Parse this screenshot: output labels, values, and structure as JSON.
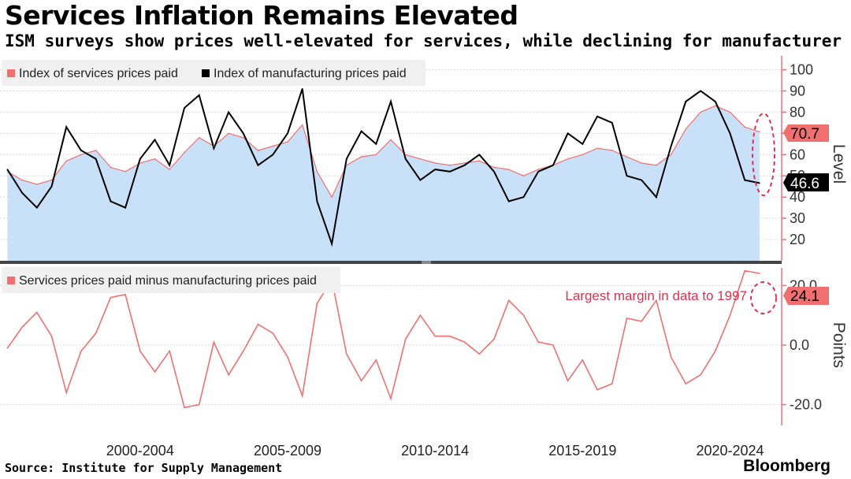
{
  "title": "Services Inflation Remains Elevated",
  "subtitle": "ISM surveys show prices well-elevated for services, while declining for manufacturer",
  "source": "Source: Institute for Supply Management",
  "brand": "Bloomberg",
  "colors": {
    "services": "#f07070",
    "manufacturing": "#000000",
    "area_fill": "#c9e1f8",
    "axis": "#e8707a",
    "annotation": "#e03050"
  },
  "chart_data": [
    {
      "type": "line",
      "ylabel": "Level",
      "ylim": [
        10,
        105
      ],
      "yticks": [
        "20",
        "30",
        "40",
        "50",
        "60",
        "70",
        "80",
        "90",
        "100"
      ],
      "xlabels": [
        "2000-2004",
        "2005-2009",
        "2010-2014",
        "2015-2019",
        "2020-2024"
      ],
      "grid": true,
      "legend_position": "top-left",
      "last_value_labels": [
        {
          "series": "Index of services prices paid",
          "value": "70.7"
        },
        {
          "series": "Index of manufacturing prices paid",
          "value": "46.6"
        }
      ],
      "series": [
        {
          "name": "Index of services prices paid",
          "style": "area",
          "x": [
            1998.0,
            1998.5,
            1999.0,
            1999.5,
            2000.0,
            2000.5,
            2001.0,
            2001.5,
            2002.0,
            2002.5,
            2003.0,
            2003.5,
            2004.0,
            2004.5,
            2005.0,
            2005.5,
            2006.0,
            2006.5,
            2007.0,
            2007.5,
            2008.0,
            2008.5,
            2009.0,
            2009.5,
            2010.0,
            2010.5,
            2011.0,
            2011.5,
            2012.0,
            2012.5,
            2013.0,
            2013.5,
            2014.0,
            2014.5,
            2015.0,
            2015.5,
            2016.0,
            2016.5,
            2017.0,
            2017.5,
            2018.0,
            2018.5,
            2019.0,
            2019.5,
            2020.0,
            2020.5,
            2021.0,
            2021.5,
            2022.0,
            2022.5,
            2023.0,
            2023.5
          ],
          "values": [
            52,
            48,
            46,
            48,
            57,
            60,
            62,
            54,
            52,
            56,
            58,
            53,
            61,
            68,
            64,
            70,
            68,
            62,
            64,
            66,
            74,
            52,
            40,
            55,
            59,
            60,
            67,
            60,
            58,
            56,
            55,
            56,
            57,
            54,
            53,
            50,
            53,
            55,
            58,
            60,
            63,
            62,
            59,
            56,
            55,
            60,
            72,
            80,
            83,
            80,
            73,
            70.7
          ]
        },
        {
          "name": "Index of manufacturing prices paid",
          "style": "line",
          "x": [
            1998.0,
            1998.5,
            1999.0,
            1999.5,
            2000.0,
            2000.5,
            2001.0,
            2001.5,
            2002.0,
            2002.5,
            2003.0,
            2003.5,
            2004.0,
            2004.5,
            2005.0,
            2005.5,
            2006.0,
            2006.5,
            2007.0,
            2007.5,
            2008.0,
            2008.5,
            2009.0,
            2009.5,
            2010.0,
            2010.5,
            2011.0,
            2011.5,
            2012.0,
            2012.5,
            2013.0,
            2013.5,
            2014.0,
            2014.5,
            2015.0,
            2015.5,
            2016.0,
            2016.5,
            2017.0,
            2017.5,
            2018.0,
            2018.5,
            2019.0,
            2019.5,
            2020.0,
            2020.5,
            2021.0,
            2021.5,
            2022.0,
            2022.5,
            2023.0,
            2023.5
          ],
          "values": [
            53,
            42,
            35,
            45,
            73,
            62,
            58,
            38,
            35,
            58,
            67,
            55,
            82,
            88,
            63,
            80,
            70,
            55,
            60,
            70,
            91,
            38,
            18,
            58,
            71,
            65,
            85,
            58,
            48,
            53,
            52,
            55,
            60,
            52,
            38,
            40,
            52,
            55,
            70,
            65,
            78,
            75,
            50,
            48,
            40,
            64,
            85,
            90,
            85,
            70,
            48,
            46.6
          ]
        }
      ]
    },
    {
      "type": "line",
      "ylabel": "Points",
      "ylim": [
        -27,
        27
      ],
      "yticks": [
        "20.0",
        "0.0",
        "-20.0"
      ],
      "grid": true,
      "legend_position": "top-left",
      "annotation": "Largest margin in data to 1997",
      "last_value_label": "24.1",
      "series": [
        {
          "name": "Services prices paid minus manufacturing prices paid",
          "x": [
            1998.0,
            1998.5,
            1999.0,
            1999.5,
            2000.0,
            2000.5,
            2001.0,
            2001.5,
            2002.0,
            2002.5,
            2003.0,
            2003.5,
            2004.0,
            2004.5,
            2005.0,
            2005.5,
            2006.0,
            2006.5,
            2007.0,
            2007.5,
            2008.0,
            2008.5,
            2009.0,
            2009.5,
            2010.0,
            2010.5,
            2011.0,
            2011.5,
            2012.0,
            2012.5,
            2013.0,
            2013.5,
            2014.0,
            2014.5,
            2015.0,
            2015.5,
            2016.0,
            2016.5,
            2017.0,
            2017.5,
            2018.0,
            2018.5,
            2019.0,
            2019.5,
            2020.0,
            2020.5,
            2021.0,
            2021.5,
            2022.0,
            2022.5,
            2023.0,
            2023.5
          ],
          "values": [
            -1,
            6,
            11,
            3,
            -16,
            -2,
            4,
            16,
            17,
            -2,
            -9,
            -2,
            -21,
            -20,
            1,
            -10,
            -2,
            7,
            4,
            -4,
            -17,
            14,
            22,
            -3,
            -12,
            -5,
            -18,
            2,
            10,
            3,
            3,
            1,
            -3,
            2,
            15,
            10,
            1,
            0,
            -12,
            -5,
            -15,
            -13,
            9,
            8,
            15,
            -4,
            -13,
            -10,
            -2,
            10,
            25,
            24.1
          ]
        }
      ]
    }
  ]
}
